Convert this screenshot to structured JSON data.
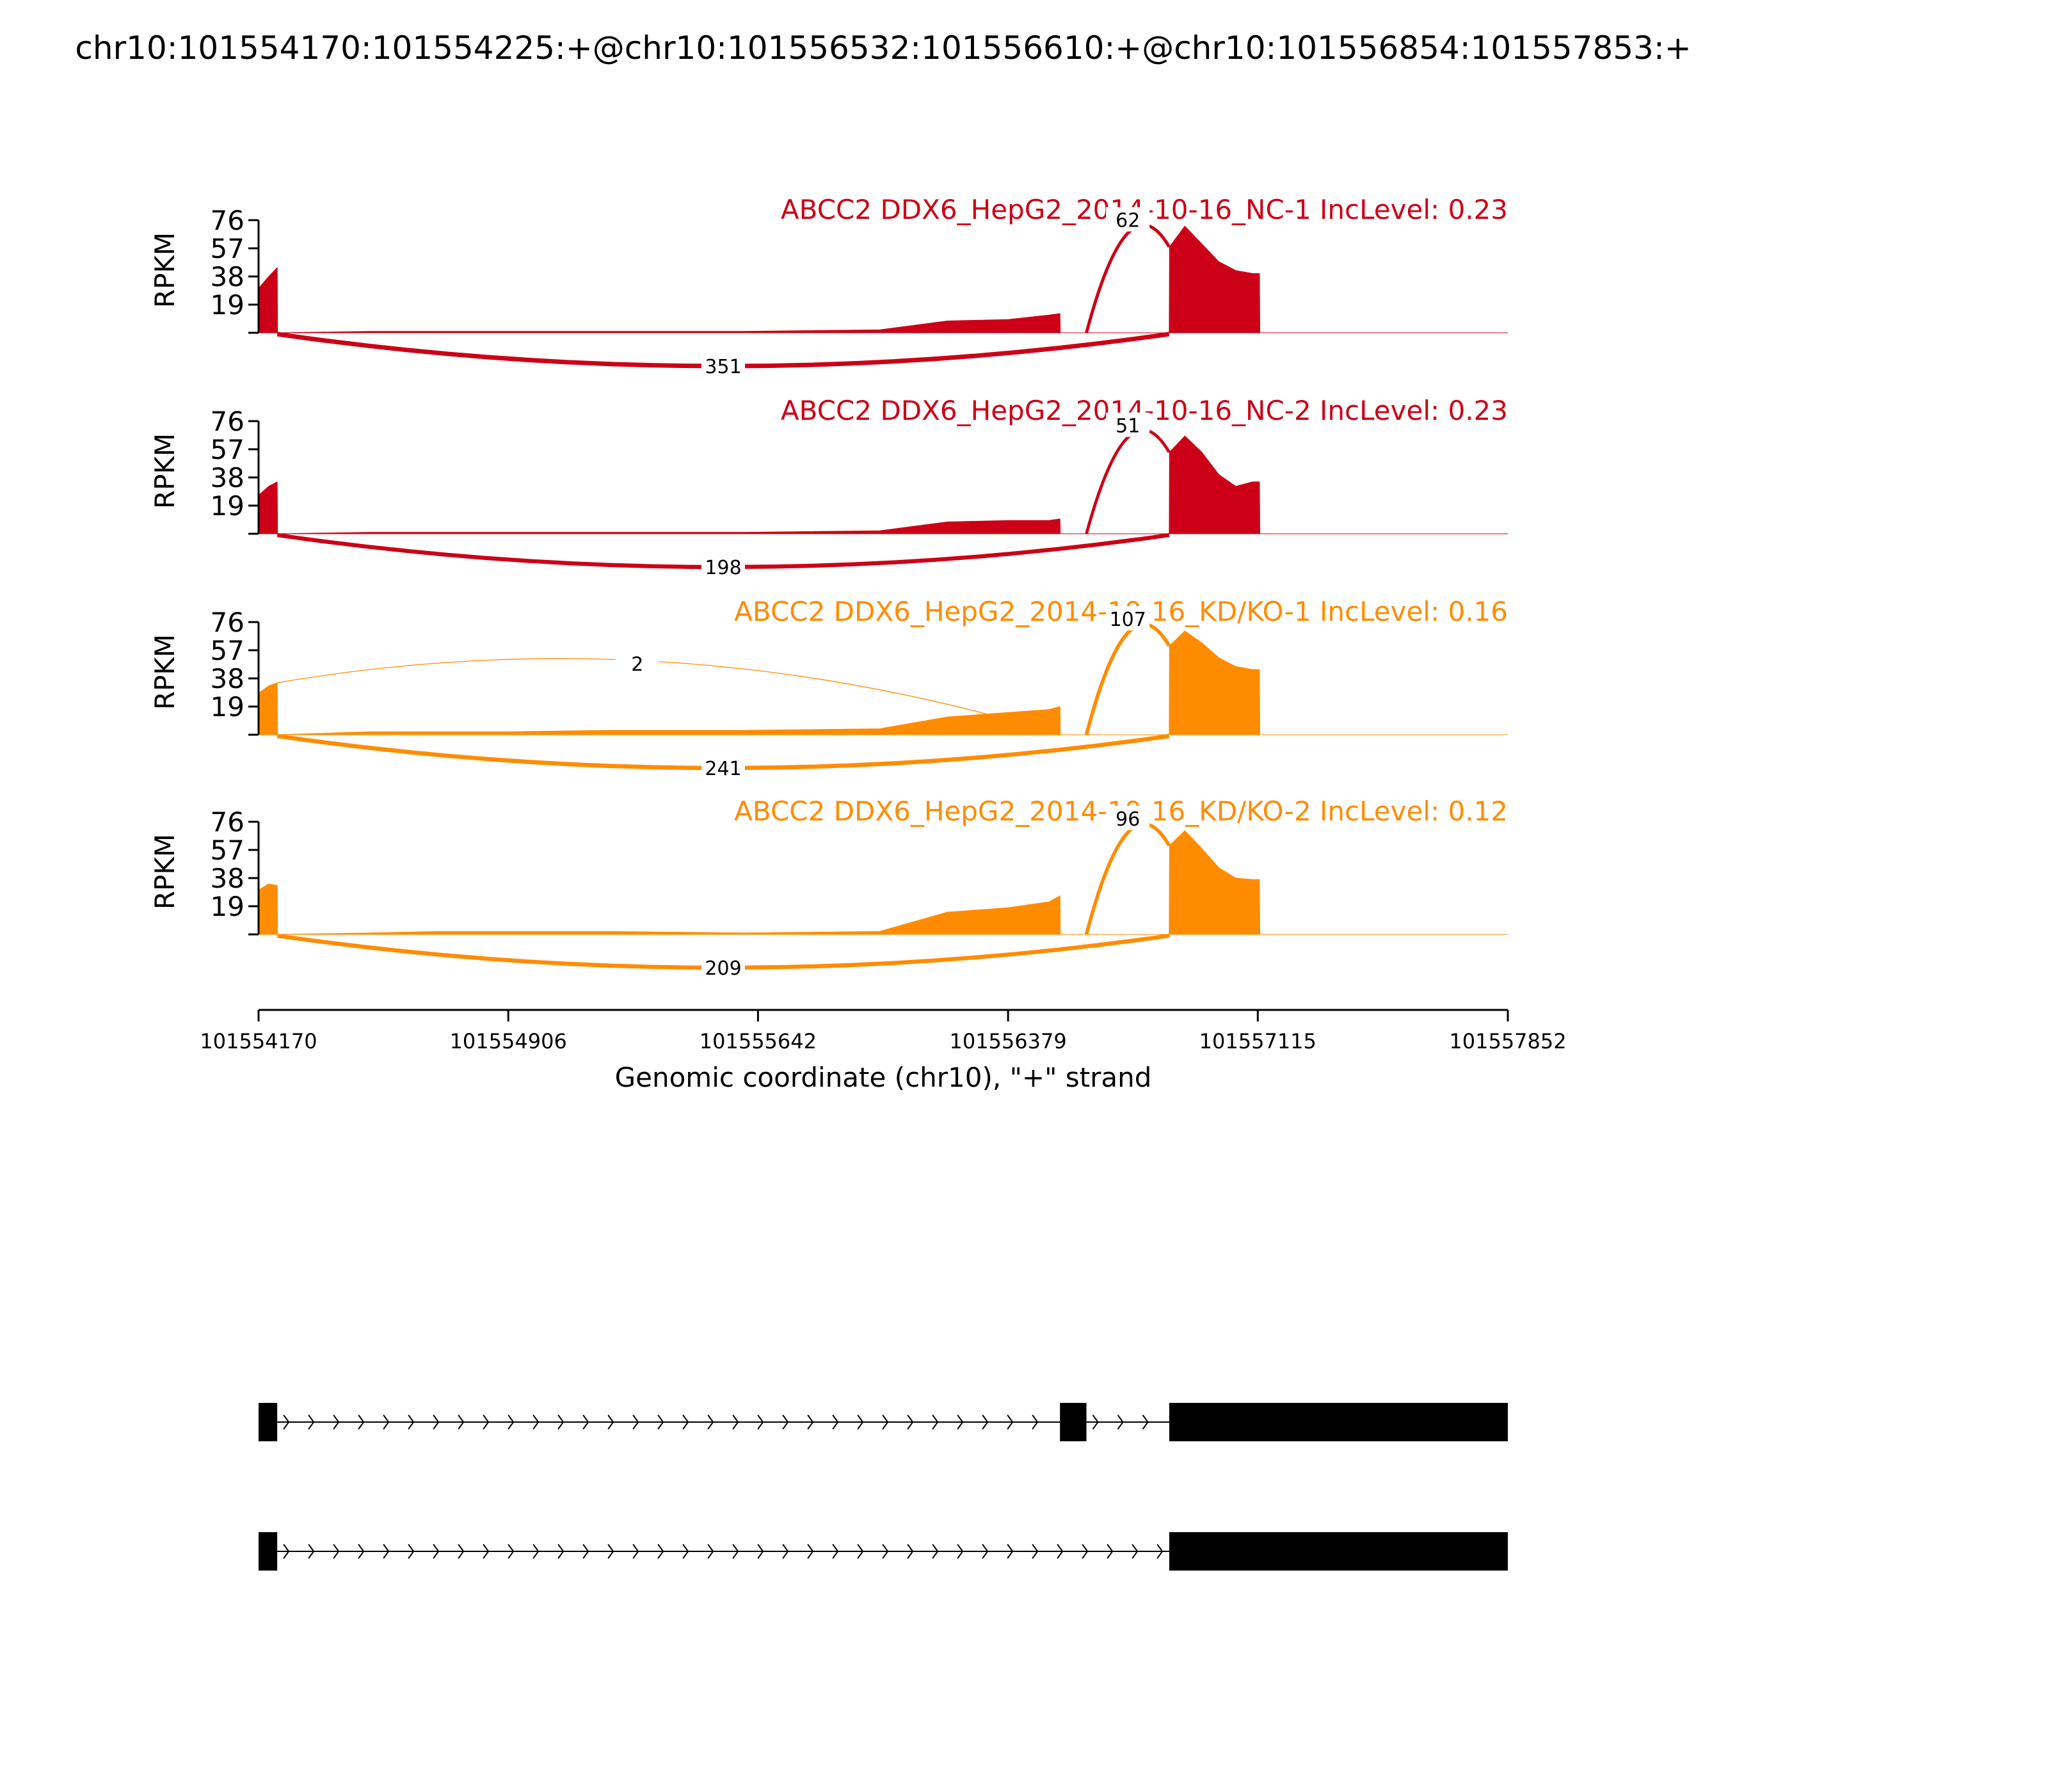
{
  "page_title": "chr10:101554170:101554225:+@chr10:101556532:101556610:+@chr10:101556854:101557853:+",
  "colors": {
    "nc": "#cc0016",
    "kd": "#ff8c00",
    "axis": "#000000",
    "gene": "#000000"
  },
  "chart_data": {
    "type": "sashimi",
    "title": "chr10:101554170:101554225:+@chr10:101556532:101556610:+@chr10:101556854:101557853:+",
    "xlabel": "Genomic coordinate (chr10), \"+\" strand",
    "ylabel": "RPKM",
    "xlim": [
      101554170,
      101557852
    ],
    "xticks": [
      101554170,
      101554906,
      101555642,
      101556379,
      101557115,
      101557852
    ],
    "ylim": [
      0,
      76
    ],
    "yticks": [
      19,
      38,
      57,
      76
    ],
    "exons": [
      [
        101554170,
        101554225
      ],
      [
        101556532,
        101556610
      ],
      [
        101556854,
        101557853
      ]
    ],
    "tracks": [
      {
        "name": "ABCC2 DDX6_HepG2_2014-10-16_NC-1 IncLevel: 0.23",
        "color": "nc",
        "junctions": [
          {
            "start": 101554225,
            "end": 101556854,
            "count": 351,
            "side": "below"
          },
          {
            "start": 101556610,
            "end": 101556854,
            "count": 62,
            "side": "above"
          }
        ],
        "coverage": [
          [
            101554170,
            30
          ],
          [
            101554200,
            38
          ],
          [
            101554225,
            44
          ],
          [
            101554226,
            0
          ],
          [
            101554500,
            1
          ],
          [
            101555000,
            1
          ],
          [
            101555600,
            1
          ],
          [
            101556000,
            2
          ],
          [
            101556200,
            8
          ],
          [
            101556380,
            9
          ],
          [
            101556500,
            12
          ],
          [
            101556532,
            13
          ],
          [
            101556533,
            0
          ],
          [
            101556854,
            0
          ],
          [
            101556855,
            58
          ],
          [
            101556900,
            72
          ],
          [
            101556950,
            60
          ],
          [
            101557000,
            48
          ],
          [
            101557050,
            42
          ],
          [
            101557100,
            40
          ],
          [
            101557120,
            40
          ],
          [
            101557121,
            0
          ],
          [
            101557852,
            0
          ]
        ]
      },
      {
        "name": "ABCC2 DDX6_HepG2_2014-10-16_NC-2 IncLevel: 0.23",
        "color": "nc",
        "junctions": [
          {
            "start": 101554225,
            "end": 101556854,
            "count": 198,
            "side": "below"
          },
          {
            "start": 101556610,
            "end": 101556854,
            "count": 51,
            "side": "above"
          }
        ],
        "coverage": [
          [
            101554170,
            26
          ],
          [
            101554200,
            32
          ],
          [
            101554225,
            35
          ],
          [
            101554226,
            0
          ],
          [
            101554500,
            1
          ],
          [
            101555000,
            1
          ],
          [
            101555600,
            1
          ],
          [
            101556000,
            2
          ],
          [
            101556200,
            8
          ],
          [
            101556380,
            9
          ],
          [
            101556500,
            9
          ],
          [
            101556532,
            10
          ],
          [
            101556533,
            0
          ],
          [
            101556854,
            0
          ],
          [
            101556855,
            55
          ],
          [
            101556900,
            66
          ],
          [
            101556950,
            55
          ],
          [
            101557000,
            40
          ],
          [
            101557050,
            32
          ],
          [
            101557100,
            35
          ],
          [
            101557120,
            35
          ],
          [
            101557121,
            0
          ],
          [
            101557852,
            0
          ]
        ]
      },
      {
        "name": "ABCC2 DDX6_HepG2_2014-10-16_KD/KO-1 IncLevel: 0.16",
        "color": "kd",
        "junctions": [
          {
            "start": 101554225,
            "end": 101556854,
            "count": 241,
            "side": "below"
          },
          {
            "start": 101556610,
            "end": 101556854,
            "count": 107,
            "side": "above"
          },
          {
            "start": 101554225,
            "end": 101556532,
            "count": 2,
            "side": "above"
          }
        ],
        "coverage": [
          [
            101554170,
            28
          ],
          [
            101554200,
            33
          ],
          [
            101554225,
            35
          ],
          [
            101554226,
            0
          ],
          [
            101554500,
            2
          ],
          [
            101554900,
            2
          ],
          [
            101555200,
            3
          ],
          [
            101555600,
            3
          ],
          [
            101556000,
            4
          ],
          [
            101556200,
            12
          ],
          [
            101556380,
            15
          ],
          [
            101556500,
            17
          ],
          [
            101556532,
            19
          ],
          [
            101556533,
            0
          ],
          [
            101556854,
            0
          ],
          [
            101556855,
            60
          ],
          [
            101556900,
            70
          ],
          [
            101556950,
            62
          ],
          [
            101557000,
            52
          ],
          [
            101557050,
            46
          ],
          [
            101557100,
            44
          ],
          [
            101557120,
            44
          ],
          [
            101557121,
            0
          ],
          [
            101557852,
            0
          ]
        ]
      },
      {
        "name": "ABCC2 DDX6_HepG2_2014-10-16_KD/KO-2 IncLevel: 0.12",
        "color": "kd",
        "junctions": [
          {
            "start": 101554225,
            "end": 101556854,
            "count": 209,
            "side": "below"
          },
          {
            "start": 101556610,
            "end": 101556854,
            "count": 96,
            "side": "above"
          }
        ],
        "coverage": [
          [
            101554170,
            30
          ],
          [
            101554200,
            34
          ],
          [
            101554225,
            33
          ],
          [
            101554226,
            0
          ],
          [
            101554500,
            1
          ],
          [
            101554700,
            2
          ],
          [
            101555200,
            2
          ],
          [
            101555600,
            1
          ],
          [
            101556000,
            2
          ],
          [
            101556200,
            15
          ],
          [
            101556380,
            18
          ],
          [
            101556500,
            22
          ],
          [
            101556532,
            26
          ],
          [
            101556533,
            0
          ],
          [
            101556854,
            0
          ],
          [
            101556855,
            60
          ],
          [
            101556900,
            70
          ],
          [
            101556950,
            58
          ],
          [
            101557000,
            45
          ],
          [
            101557050,
            38
          ],
          [
            101557100,
            37
          ],
          [
            101557120,
            37
          ],
          [
            101557121,
            0
          ],
          [
            101557852,
            0
          ]
        ]
      }
    ],
    "isoforms": [
      {
        "exons": [
          [
            101554170,
            101554225
          ],
          [
            101556532,
            101556610
          ],
          [
            101556854,
            101557853
          ]
        ]
      },
      {
        "exons": [
          [
            101554170,
            101554225
          ],
          [
            101556854,
            101557853
          ]
        ]
      }
    ]
  }
}
